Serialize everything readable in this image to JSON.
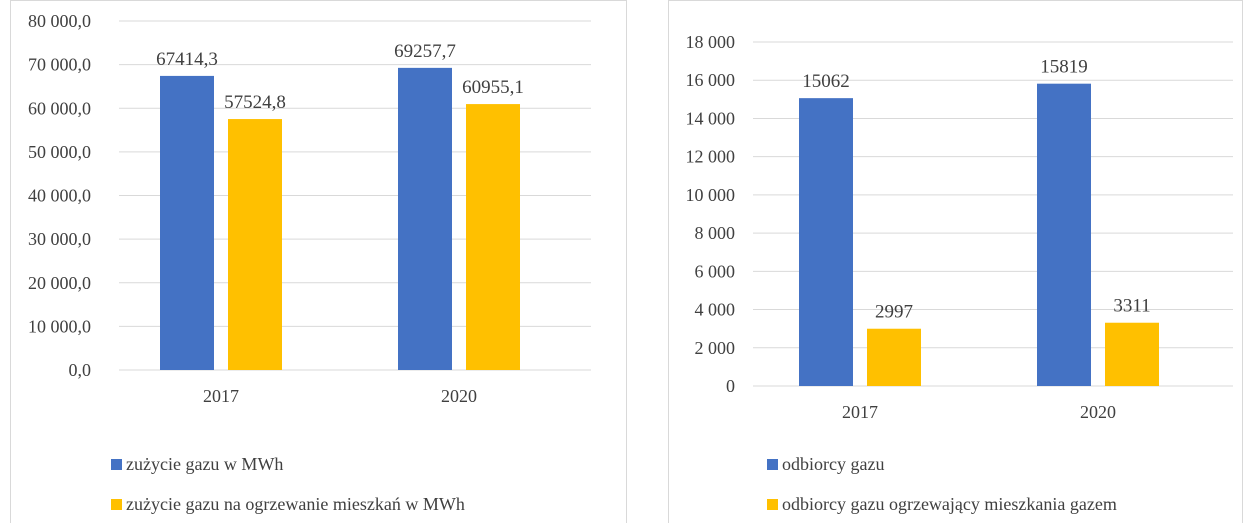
{
  "colors": {
    "blue": "#4472c4",
    "yellow": "#ffc000",
    "grid": "#d9d9d9",
    "text": "#404040"
  },
  "chart_data": [
    {
      "type": "bar",
      "categories": [
        "2017",
        "2020"
      ],
      "ylim": [
        0,
        80000
      ],
      "yticks": [
        "0,0",
        "10 000,0",
        "20 000,0",
        "30 000,0",
        "40 000,0",
        "50 000,0",
        "60 000,0",
        "70 000,0",
        "80 000,0"
      ],
      "series": [
        {
          "name": "zużycie gazu w MWh",
          "values": [
            67414.3,
            69257.7
          ],
          "labels": [
            "67414,3",
            "69257,7"
          ],
          "color": "#4472c4"
        },
        {
          "name": "zużycie gazu na ogrzewanie mieszkań w MWh",
          "values": [
            57524.8,
            60955.1
          ],
          "labels": [
            "57524,8",
            "60955,1"
          ],
          "color": "#ffc000"
        }
      ],
      "grid": true,
      "legend": "bottom"
    },
    {
      "type": "bar",
      "categories": [
        "2017",
        "2020"
      ],
      "ylim": [
        0,
        18000
      ],
      "yticks": [
        "0",
        "2 000",
        "4 000",
        "6 000",
        "8 000",
        "10 000",
        "12 000",
        "14 000",
        "16 000",
        "18 000"
      ],
      "series": [
        {
          "name": "odbiorcy gazu",
          "values": [
            15062,
            15819
          ],
          "labels": [
            "15062",
            "15819"
          ],
          "color": "#4472c4"
        },
        {
          "name": "odbiorcy gazu ogrzewający mieszkania gazem",
          "values": [
            2997,
            3311
          ],
          "labels": [
            "2997",
            "3311"
          ],
          "color": "#ffc000"
        }
      ],
      "grid": true,
      "legend": "bottom"
    }
  ]
}
